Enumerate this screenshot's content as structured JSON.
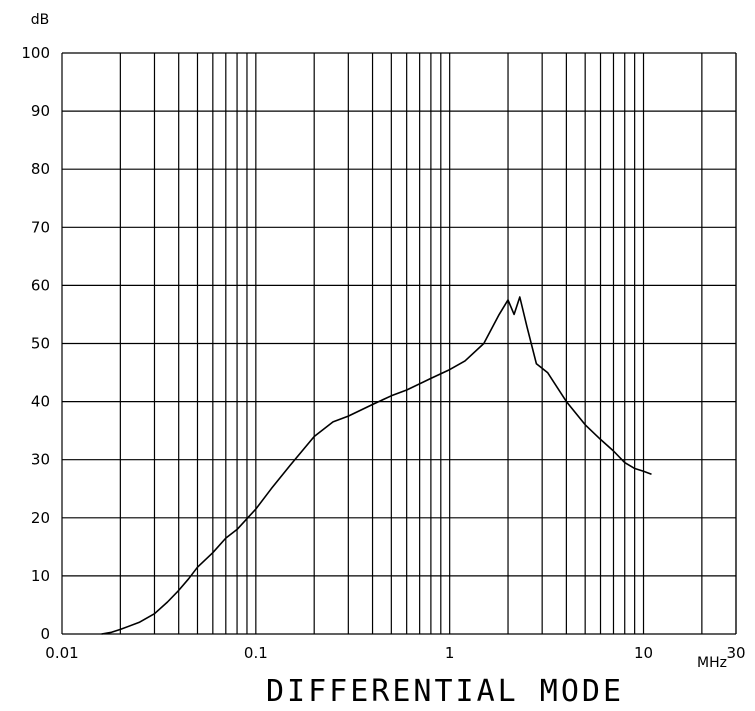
{
  "chart_data": {
    "type": "line",
    "title": "DIFFERENTIAL MODE",
    "ylabel": "dB",
    "xlabel": "MHz",
    "x_scale": "log",
    "xlim": [
      0.01,
      30
    ],
    "ylim": [
      0,
      100
    ],
    "grid": true,
    "x_ticks": [
      0.01,
      0.1,
      1,
      10,
      30
    ],
    "x_tick_labels": [
      "0.01",
      "0.1",
      "1",
      "10",
      "30"
    ],
    "y_ticks": [
      0,
      10,
      20,
      30,
      40,
      50,
      60,
      70,
      80,
      90,
      100
    ],
    "y_tick_labels": [
      "0",
      "10",
      "20",
      "30",
      "40",
      "50",
      "60",
      "70",
      "80",
      "90",
      "100"
    ],
    "series": [
      {
        "x": [
          0.016,
          0.018,
          0.02,
          0.025,
          0.03,
          0.035,
          0.04,
          0.045,
          0.05,
          0.06,
          0.07,
          0.08,
          0.1,
          0.12,
          0.15,
          0.2,
          0.25,
          0.3,
          0.4,
          0.5,
          0.6,
          0.8,
          1.0,
          1.2,
          1.5,
          1.8,
          2.0,
          2.15,
          2.3,
          2.5,
          2.8,
          3.2,
          4.0,
          5.0,
          6.0,
          7.0,
          8.0,
          9.0,
          10.0,
          11.0
        ],
        "y": [
          0,
          0.3,
          0.8,
          2,
          3.5,
          5.5,
          7.5,
          9.5,
          11.5,
          14,
          16.5,
          18,
          21.5,
          25,
          29,
          34,
          36.5,
          37.5,
          39.5,
          41,
          42,
          44,
          45.5,
          47,
          50,
          55,
          57.5,
          55,
          58,
          53,
          46.5,
          45,
          40,
          36,
          33.5,
          31.5,
          29.5,
          28.5,
          28,
          27.5
        ]
      }
    ]
  }
}
